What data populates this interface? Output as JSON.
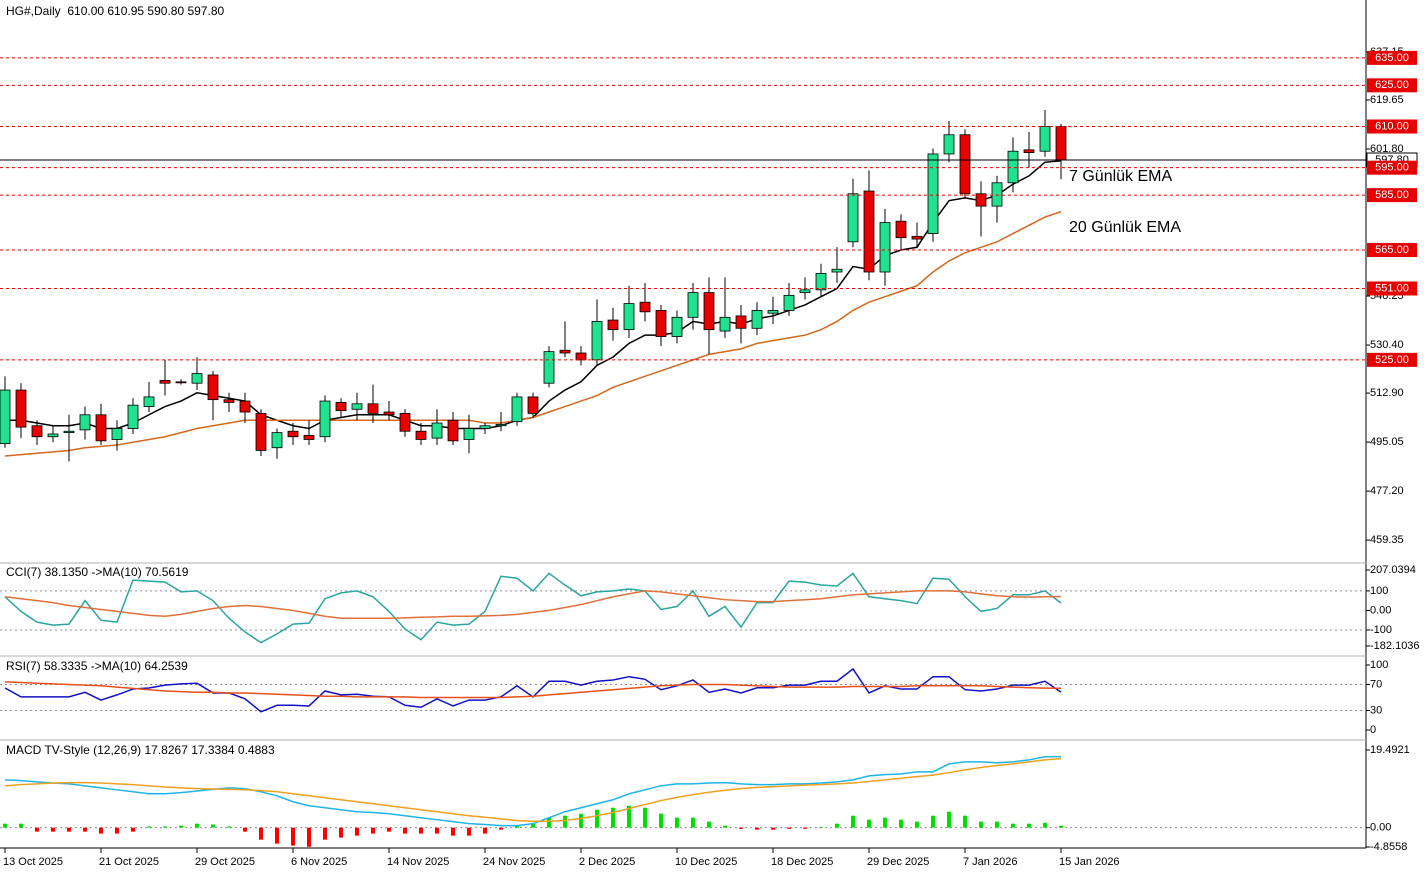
{
  "chart_data": [
    {
      "type": "candlestick",
      "title": "HG#,Daily  610.00 610.95 590.80 597.80",
      "up_color": "#23e08f",
      "down_color": "#e60000",
      "open": [
        494.5,
        514,
        501,
        497,
        498.5,
        499.5,
        505,
        496,
        500,
        508,
        517.5,
        517,
        516.5,
        519.5,
        510.5,
        510,
        505.5,
        493,
        499,
        497.5,
        497,
        509.5,
        507,
        509,
        506,
        505.5,
        499,
        496.5,
        503,
        496,
        500,
        501,
        502.5,
        511.5,
        516.5,
        528.5,
        527.5,
        525,
        539.5,
        536,
        546,
        543,
        533.5,
        540.5,
        549.5,
        535.5,
        541,
        536.5,
        542,
        543,
        549.5,
        550.5,
        557,
        568,
        586.5,
        557,
        575.5,
        570,
        571,
        600,
        607,
        585.5,
        581,
        589.5,
        601.5,
        601,
        610
      ],
      "high": [
        519,
        516.5,
        503,
        501,
        505,
        508,
        509,
        503,
        511,
        517,
        525,
        518,
        526,
        521,
        513,
        513,
        507,
        500,
        502,
        503,
        512,
        511,
        513,
        516,
        510,
        507,
        502,
        507,
        506,
        505,
        502,
        506,
        513,
        513,
        530,
        539,
        530,
        547,
        544,
        552,
        553,
        545,
        543,
        553,
        555,
        555,
        545,
        546,
        548,
        553,
        555,
        560,
        566,
        591,
        594,
        580,
        578,
        575,
        602,
        612,
        609,
        590,
        592,
        606,
        608,
        616,
        610.95
      ],
      "low": [
        493,
        496.5,
        494,
        495,
        488,
        496,
        494,
        492,
        498,
        506,
        512,
        516,
        514,
        503,
        506,
        502,
        490,
        489,
        494,
        494,
        495,
        504,
        503,
        502,
        503,
        497,
        494,
        494,
        494,
        491,
        498,
        499,
        501,
        504,
        515,
        526,
        523,
        523,
        532,
        533,
        539,
        530,
        531,
        536,
        527,
        533,
        531,
        534,
        538,
        541,
        547,
        548,
        553,
        566,
        554,
        552,
        565,
        566,
        568,
        597,
        584,
        570,
        575,
        586,
        595,
        599,
        590.8
      ],
      "close": [
        514,
        500.5,
        497,
        498,
        499,
        505,
        495.5,
        500,
        508.5,
        511.5,
        516.5,
        516.8,
        520,
        510.5,
        509.5,
        506,
        492,
        498.5,
        497,
        496,
        510,
        506.5,
        509,
        505.5,
        505,
        499,
        496,
        502,
        495.5,
        500,
        501,
        501.5,
        511.5,
        505.5,
        528,
        527.5,
        525,
        539,
        536,
        545.5,
        542.5,
        533.5,
        540.5,
        549.5,
        536,
        540.5,
        536.5,
        543,
        543,
        548.5,
        550.5,
        556.5,
        558,
        585.5,
        557,
        575,
        569.5,
        569,
        600,
        607,
        585.5,
        581,
        589.5,
        601,
        600.5,
        610,
        597.8
      ],
      "series": [
        {
          "name": "7 Günlük EMA",
          "color": "#000000",
          "label_color": "#222222",
          "values": [
            503,
            503,
            502,
            501,
            501,
            502,
            500,
            500,
            502,
            505,
            508,
            510,
            513,
            512,
            511,
            510,
            505,
            503,
            501,
            500,
            503,
            504,
            505,
            505,
            505,
            503,
            501,
            501,
            500,
            500,
            500,
            501,
            503,
            504,
            510,
            514,
            517,
            523,
            526,
            531,
            534,
            534,
            535,
            539,
            538,
            539,
            538,
            540,
            541,
            543,
            545,
            548,
            551,
            559,
            558,
            563,
            565,
            566,
            575,
            583,
            584,
            583,
            585,
            589,
            592,
            597,
            597.5
          ]
        },
        {
          "name": "20 Günlük EMA",
          "color": "#d2691e",
          "label_color": "#8b2a0a",
          "values": [
            490,
            490.5,
            491,
            491.5,
            492,
            493,
            493.5,
            494,
            495,
            496,
            497,
            498.5,
            500,
            501,
            502,
            503,
            503,
            503,
            503,
            503,
            503,
            503,
            503,
            503,
            503,
            503,
            503,
            503,
            503,
            503,
            502,
            502,
            503,
            504,
            506,
            508,
            510,
            512,
            515,
            517,
            519,
            521,
            523,
            525,
            527,
            528,
            529,
            531,
            532,
            533,
            534,
            536,
            539,
            543,
            546,
            548,
            550,
            552,
            557,
            561,
            564,
            566,
            568,
            571,
            574,
            577,
            579
          ]
        }
      ],
      "ylim": [
        452.1,
        645.15
      ],
      "yticks": [
        459.35,
        {
          "value": 477.2,
          "label": "477.20"
        },
        495.05,
        {
          "value": 512.9,
          "label": "512.90"
        },
        {
          "value": 530.4,
          "label": "530.40"
        },
        548.25,
        {
          "value": 601.8,
          "label": "601.80"
        },
        619.65,
        637.15
      ],
      "levels": [
        {
          "value": 635,
          "label": "635.00"
        },
        {
          "value": 625,
          "label": "625.00"
        },
        {
          "value": 610,
          "label": "610.00"
        },
        {
          "value": 595,
          "label": "595.00"
        },
        {
          "value": 585,
          "label": "585.00"
        },
        {
          "value": 565,
          "label": "565.00"
        },
        {
          "value": 551,
          "label": "551.00"
        },
        {
          "value": 525,
          "label": "525.00"
        }
      ],
      "level_color": "#e60000",
      "last_price": {
        "value": 597.8,
        "label": "597.80"
      },
      "x_labels": [
        "13 Oct 2025",
        "21 Oct 2025",
        "29 Oct 2025",
        "6 Nov 2025",
        "14 Nov 2025",
        "24 Nov 2025",
        "2 Dec 2025",
        "10 Dec 2025",
        "18 Dec 2025",
        "29 Dec 2025",
        "7 Jan 2026",
        "15 Jan 2026"
      ]
    },
    {
      "type": "line",
      "title": "CCI(7) 38.1350 ->MA(10) 70.5619",
      "ylim": [
        -182.1036,
        207.0394
      ],
      "yticks": [
        207.0394,
        100,
        {
          "value": 0,
          "label": "0.00"
        },
        -100,
        -182.1036
      ],
      "levels": [
        100,
        -100
      ],
      "series": [
        {
          "color": "#2aa5a0",
          "values": [
            70,
            -5,
            -60,
            -75,
            -70,
            50,
            -50,
            -60,
            155,
            150,
            145,
            95,
            100,
            50,
            -40,
            -110,
            -165,
            -120,
            -70,
            -65,
            60,
            90,
            100,
            70,
            -5,
            -95,
            -150,
            -60,
            -75,
            -70,
            -5,
            175,
            165,
            100,
            190,
            130,
            75,
            95,
            100,
            110,
            100,
            5,
            20,
            100,
            -30,
            20,
            -85,
            40,
            40,
            150,
            145,
            130,
            125,
            190,
            70,
            60,
            50,
            35,
            165,
            160,
            70,
            -5,
            10,
            80,
            80,
            100,
            38.135
          ]
        },
        {
          "color": "#e0703a",
          "values": [
            70,
            60,
            50,
            40,
            25,
            15,
            5,
            -5,
            -15,
            -25,
            -30,
            -20,
            -5,
            10,
            20,
            25,
            20,
            10,
            0,
            -15,
            -30,
            -40,
            -40,
            -40,
            -40,
            -38,
            -35,
            -33,
            -30,
            -30,
            -28,
            -25,
            -20,
            -10,
            0,
            15,
            30,
            50,
            70,
            85,
            100,
            95,
            85,
            75,
            65,
            55,
            50,
            45,
            45,
            50,
            55,
            60,
            70,
            80,
            85,
            90,
            95,
            100,
            100,
            100,
            95,
            85,
            75,
            70,
            68,
            70,
            70.5619
          ]
        }
      ]
    },
    {
      "type": "line",
      "title": "RSI(7) 58.3335 ->MA(10) 64.2539",
      "ylim": [
        0,
        100
      ],
      "yticks": [
        100,
        70,
        30,
        0
      ],
      "levels": [
        70,
        30
      ],
      "series": [
        {
          "color": "#1010c8",
          "values": [
            64.6,
            51,
            51,
            51,
            51,
            58,
            46,
            54,
            63,
            64.6,
            69,
            71,
            72,
            57,
            57,
            48,
            28,
            38,
            38,
            37,
            60,
            54,
            55,
            52,
            51,
            38,
            35,
            48,
            37,
            46,
            46,
            51,
            68,
            51,
            75,
            75,
            69,
            75,
            77,
            82,
            78,
            62,
            68,
            77,
            58,
            63,
            57,
            65,
            65,
            69,
            69,
            75,
            75,
            94,
            57,
            68,
            63,
            63,
            82,
            82,
            62,
            60,
            63,
            69,
            69,
            75,
            58.3335
          ]
        },
        {
          "color": "#e8501a",
          "values": [
            74,
            73,
            72,
            71,
            70,
            69,
            68,
            66,
            64,
            62,
            60,
            59,
            58,
            58,
            57,
            57,
            56,
            55,
            54,
            53,
            52,
            52,
            51,
            51,
            51,
            51,
            50,
            50,
            50,
            50,
            50,
            50,
            51,
            52,
            54,
            56,
            58,
            60,
            62,
            64,
            66,
            68,
            69,
            70,
            70,
            70,
            69,
            68,
            67,
            66,
            66,
            66,
            66,
            67,
            67,
            67,
            67,
            68,
            68,
            68,
            68,
            68,
            67,
            66,
            65,
            64.5,
            64.2539
          ]
        }
      ]
    },
    {
      "type": "line",
      "title": "MACD TV-Style (12,26,9) 17.8267 17.3384 0.4883",
      "ylim": [
        -4.8558,
        19.4921
      ],
      "yticks": [
        19.4921,
        {
          "value": 0,
          "label": "0.00"
        },
        -4.8558
      ],
      "levels": [
        0
      ],
      "series": [
        {
          "kind": "bar",
          "color": "#00e000",
          "negative_color": "#ff0000",
          "values": [
            1,
            1,
            -1,
            -1,
            -1,
            -1,
            -1.5,
            -1.5,
            -1,
            0.3,
            0.3,
            0.5,
            1,
            0.8,
            0.3,
            -1,
            -3,
            -4,
            -4.5,
            -4.8,
            -3,
            -2.5,
            -2,
            -1.5,
            -1,
            -1.5,
            -1.5,
            -1.5,
            -2,
            -2,
            -1.5,
            -0.5,
            0.5,
            1,
            2.5,
            3,
            3.5,
            4.5,
            5,
            5.5,
            5,
            3.5,
            2.5,
            2.5,
            1.5,
            0.5,
            -0.3,
            -0.5,
            -0.5,
            -0.3,
            -0.3,
            0.2,
            1,
            3,
            2,
            2.5,
            2,
            1.5,
            3,
            4,
            3,
            1.5,
            1.5,
            1,
            1,
            1.2,
            0.4883
          ]
        },
        {
          "color": "#1eb4e6",
          "values": [
            12,
            11.8,
            11.5,
            11.2,
            11,
            10.5,
            10,
            9.5,
            9,
            8.5,
            8.5,
            8.8,
            9.2,
            9.6,
            10,
            9.8,
            9,
            8,
            6.5,
            5.5,
            5,
            4.5,
            4,
            3.8,
            3.5,
            3,
            2.5,
            2,
            1.5,
            1,
            0.8,
            0.5,
            0.5,
            1,
            2.5,
            4,
            5,
            6,
            7,
            8.5,
            9.5,
            10.5,
            11,
            11,
            11.2,
            11.3,
            11,
            10.8,
            10.8,
            11,
            11,
            11.2,
            11.5,
            12,
            13,
            13.3,
            13.5,
            14,
            14,
            16,
            16.5,
            16.5,
            16.3,
            16.5,
            17,
            17.8,
            17.8267
          ]
        },
        {
          "color": "#f0a020",
          "values": [
            10.5,
            10.8,
            11,
            11.2,
            11.3,
            11.3,
            11.2,
            11,
            10.8,
            10.5,
            10.2,
            10,
            9.8,
            9.7,
            9.6,
            9.5,
            9.3,
            9,
            8.5,
            8,
            7.5,
            7,
            6.5,
            6,
            5.5,
            5,
            4.5,
            4,
            3.5,
            3,
            2.6,
            2.2,
            1.8,
            1.6,
            1.6,
            1.8,
            2.3,
            3,
            3.8,
            4.8,
            5.8,
            6.8,
            7.6,
            8.3,
            8.9,
            9.4,
            9.8,
            10.1,
            10.3,
            10.5,
            10.7,
            10.8,
            11,
            11.2,
            11.6,
            12,
            12.4,
            12.8,
            13.2,
            13.8,
            14.5,
            15.1,
            15.6,
            16,
            16.5,
            17,
            17.3384
          ]
        }
      ]
    }
  ]
}
